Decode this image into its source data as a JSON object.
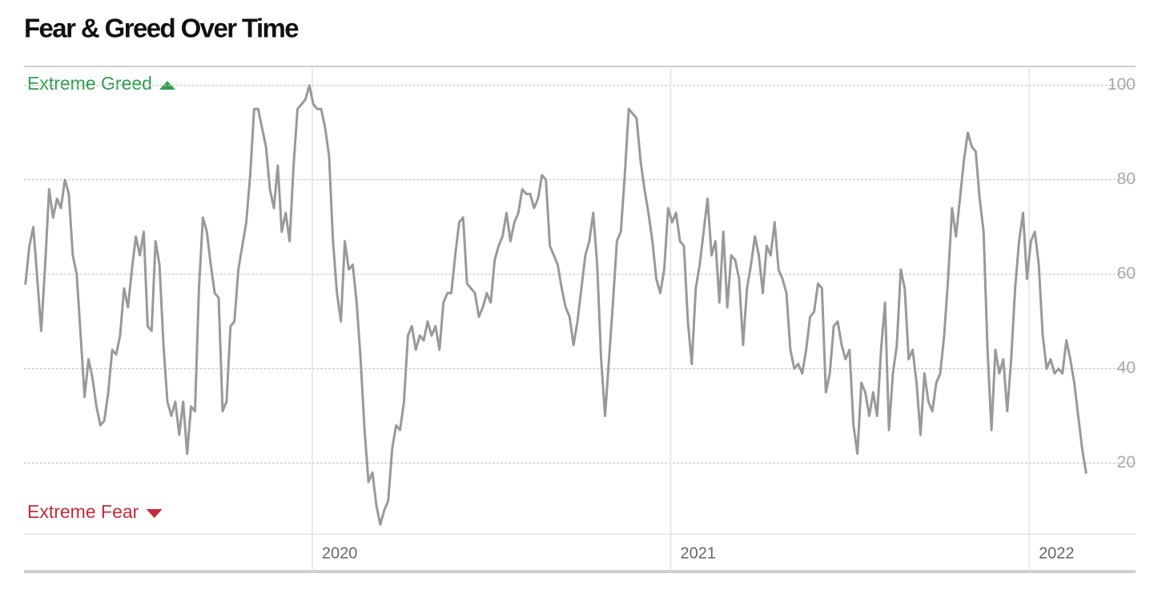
{
  "chart_data": {
    "type": "line",
    "title": "Fear & Greed Over Time",
    "annotations": [
      "Extreme Greed",
      "Extreme Fear"
    ],
    "x": [
      2019.2,
      2019.211,
      2019.222,
      2019.233,
      2019.244,
      2019.255,
      2019.266,
      2019.277,
      2019.288,
      2019.299,
      2019.31,
      2019.321,
      2019.332,
      2019.343,
      2019.354,
      2019.365,
      2019.376,
      2019.387,
      2019.398,
      2019.409,
      2019.42,
      2019.431,
      2019.442,
      2019.453,
      2019.464,
      2019.475,
      2019.486,
      2019.497,
      2019.508,
      2019.519,
      2019.53,
      2019.541,
      2019.552,
      2019.563,
      2019.574,
      2019.585,
      2019.596,
      2019.607,
      2019.618,
      2019.629,
      2019.64,
      2019.651,
      2019.662,
      2019.673,
      2019.684,
      2019.695,
      2019.706,
      2019.717,
      2019.728,
      2019.739,
      2019.75,
      2019.761,
      2019.772,
      2019.783,
      2019.794,
      2019.805,
      2019.816,
      2019.827,
      2019.838,
      2019.849,
      2019.86,
      2019.871,
      2019.882,
      2019.893,
      2019.904,
      2019.915,
      2019.926,
      2019.937,
      2019.948,
      2019.959,
      2019.97,
      2019.981,
      2019.992,
      2020.003,
      2020.014,
      2020.025,
      2020.036,
      2020.047,
      2020.058,
      2020.069,
      2020.08,
      2020.091,
      2020.102,
      2020.113,
      2020.124,
      2020.135,
      2020.146,
      2020.157,
      2020.168,
      2020.179,
      2020.19,
      2020.201,
      2020.212,
      2020.223,
      2020.234,
      2020.245,
      2020.256,
      2020.267,
      2020.278,
      2020.289,
      2020.3,
      2020.311,
      2020.322,
      2020.333,
      2020.344,
      2020.355,
      2020.366,
      2020.377,
      2020.388,
      2020.399,
      2020.41,
      2020.421,
      2020.432,
      2020.443,
      2020.454,
      2020.465,
      2020.476,
      2020.487,
      2020.498,
      2020.509,
      2020.52,
      2020.531,
      2020.542,
      2020.553,
      2020.564,
      2020.575,
      2020.586,
      2020.597,
      2020.608,
      2020.619,
      2020.63,
      2020.641,
      2020.652,
      2020.663,
      2020.674,
      2020.685,
      2020.696,
      2020.707,
      2020.718,
      2020.729,
      2020.74,
      2020.751,
      2020.762,
      2020.773,
      2020.784,
      2020.795,
      2020.806,
      2020.817,
      2020.828,
      2020.839,
      2020.85,
      2020.861,
      2020.872,
      2020.883,
      2020.894,
      2020.905,
      2020.916,
      2020.927,
      2020.938,
      2020.949,
      2020.96,
      2020.971,
      2020.982,
      2020.993,
      2021.004,
      2021.015,
      2021.026,
      2021.037,
      2021.048,
      2021.059,
      2021.07,
      2021.081,
      2021.092,
      2021.103,
      2021.114,
      2021.125,
      2021.136,
      2021.147,
      2021.158,
      2021.169,
      2021.18,
      2021.191,
      2021.202,
      2021.213,
      2021.224,
      2021.235,
      2021.246,
      2021.257,
      2021.268,
      2021.279,
      2021.29,
      2021.301,
      2021.312,
      2021.323,
      2021.334,
      2021.345,
      2021.356,
      2021.367,
      2021.378,
      2021.389,
      2021.4,
      2021.411,
      2021.422,
      2021.433,
      2021.444,
      2021.455,
      2021.466,
      2021.477,
      2021.488,
      2021.499,
      2021.51,
      2021.521,
      2021.532,
      2021.543,
      2021.554,
      2021.565,
      2021.576,
      2021.587,
      2021.598,
      2021.609,
      2021.62,
      2021.631,
      2021.642,
      2021.653,
      2021.664,
      2021.675,
      2021.686,
      2021.697,
      2021.708,
      2021.719,
      2021.73,
      2021.741,
      2021.752,
      2021.763,
      2021.774,
      2021.785,
      2021.796,
      2021.807,
      2021.818,
      2021.829,
      2021.84,
      2021.851,
      2021.862,
      2021.873,
      2021.884,
      2021.895,
      2021.906,
      2021.917,
      2021.928,
      2021.939,
      2021.95,
      2021.961,
      2021.972,
      2021.983,
      2021.994,
      2022.005,
      2022.016,
      2022.027,
      2022.038,
      2022.049,
      2022.06,
      2022.071,
      2022.082,
      2022.093,
      2022.104,
      2022.115,
      2022.126,
      2022.137,
      2022.148,
      2022.159
    ],
    "series": [
      {
        "color": "#999999",
        "values": [
          58,
          66,
          70,
          59,
          48,
          62,
          78,
          72,
          76,
          74,
          80,
          77,
          64,
          60,
          47,
          34,
          42,
          38,
          32,
          28,
          29,
          35,
          44,
          43,
          47,
          57,
          53,
          61,
          68,
          64,
          69,
          49,
          48,
          67,
          62,
          45,
          33,
          30,
          33,
          26,
          33,
          22,
          32,
          31,
          57,
          72,
          69,
          62,
          56,
          55,
          31,
          33,
          49,
          50,
          61,
          66,
          71,
          81,
          95,
          95,
          91,
          87,
          78,
          74,
          83,
          69,
          73,
          67,
          83,
          95,
          96,
          97,
          100,
          96,
          95,
          95,
          91,
          85,
          67,
          56,
          50,
          67,
          61,
          62,
          54,
          42,
          27,
          16,
          18,
          11,
          7,
          10,
          12,
          23,
          28,
          27,
          33,
          47,
          49,
          44,
          47,
          46,
          50,
          47,
          49,
          44,
          54,
          56,
          56,
          64,
          71,
          72,
          58,
          57,
          56,
          51,
          53,
          56,
          54,
          63,
          66,
          68,
          73,
          67,
          71,
          73,
          78,
          77,
          77,
          74,
          76,
          81,
          80,
          66,
          64,
          62,
          57,
          53,
          51,
          45,
          50,
          57,
          64,
          67,
          73,
          62,
          42,
          30,
          42,
          54,
          67,
          69,
          81,
          95,
          94,
          93,
          84,
          78,
          73,
          67,
          59,
          56,
          61,
          74,
          71,
          73,
          67,
          66,
          50,
          41,
          57,
          62,
          69,
          76,
          64,
          67,
          54,
          69,
          53,
          64,
          63,
          59,
          45,
          57,
          62,
          68,
          64,
          56,
          66,
          64,
          71,
          61,
          59,
          56,
          44,
          40,
          41,
          39,
          44,
          51,
          52,
          58,
          57,
          35,
          39,
          49,
          50,
          45,
          42,
          44,
          28,
          22,
          37,
          35,
          30,
          35,
          30,
          44,
          54,
          27,
          39,
          45,
          61,
          57,
          42,
          44,
          37,
          26,
          39,
          33,
          31,
          37,
          39,
          47,
          59,
          74,
          68,
          76,
          84,
          90,
          87,
          86,
          76,
          69,
          44,
          27,
          44,
          39,
          42,
          31,
          42,
          57,
          67,
          73,
          59,
          67,
          69,
          62,
          47,
          40,
          42,
          39,
          40,
          39,
          46,
          42,
          37,
          30,
          23,
          18
        ]
      }
    ],
    "xlim": [
      2019.196,
      2022.297
    ],
    "xticks": [
      2020,
      2021,
      2022
    ],
    "ylim": [
      5,
      104
    ],
    "yticks": [
      20,
      40,
      60,
      80,
      100
    ],
    "grid": true
  }
}
